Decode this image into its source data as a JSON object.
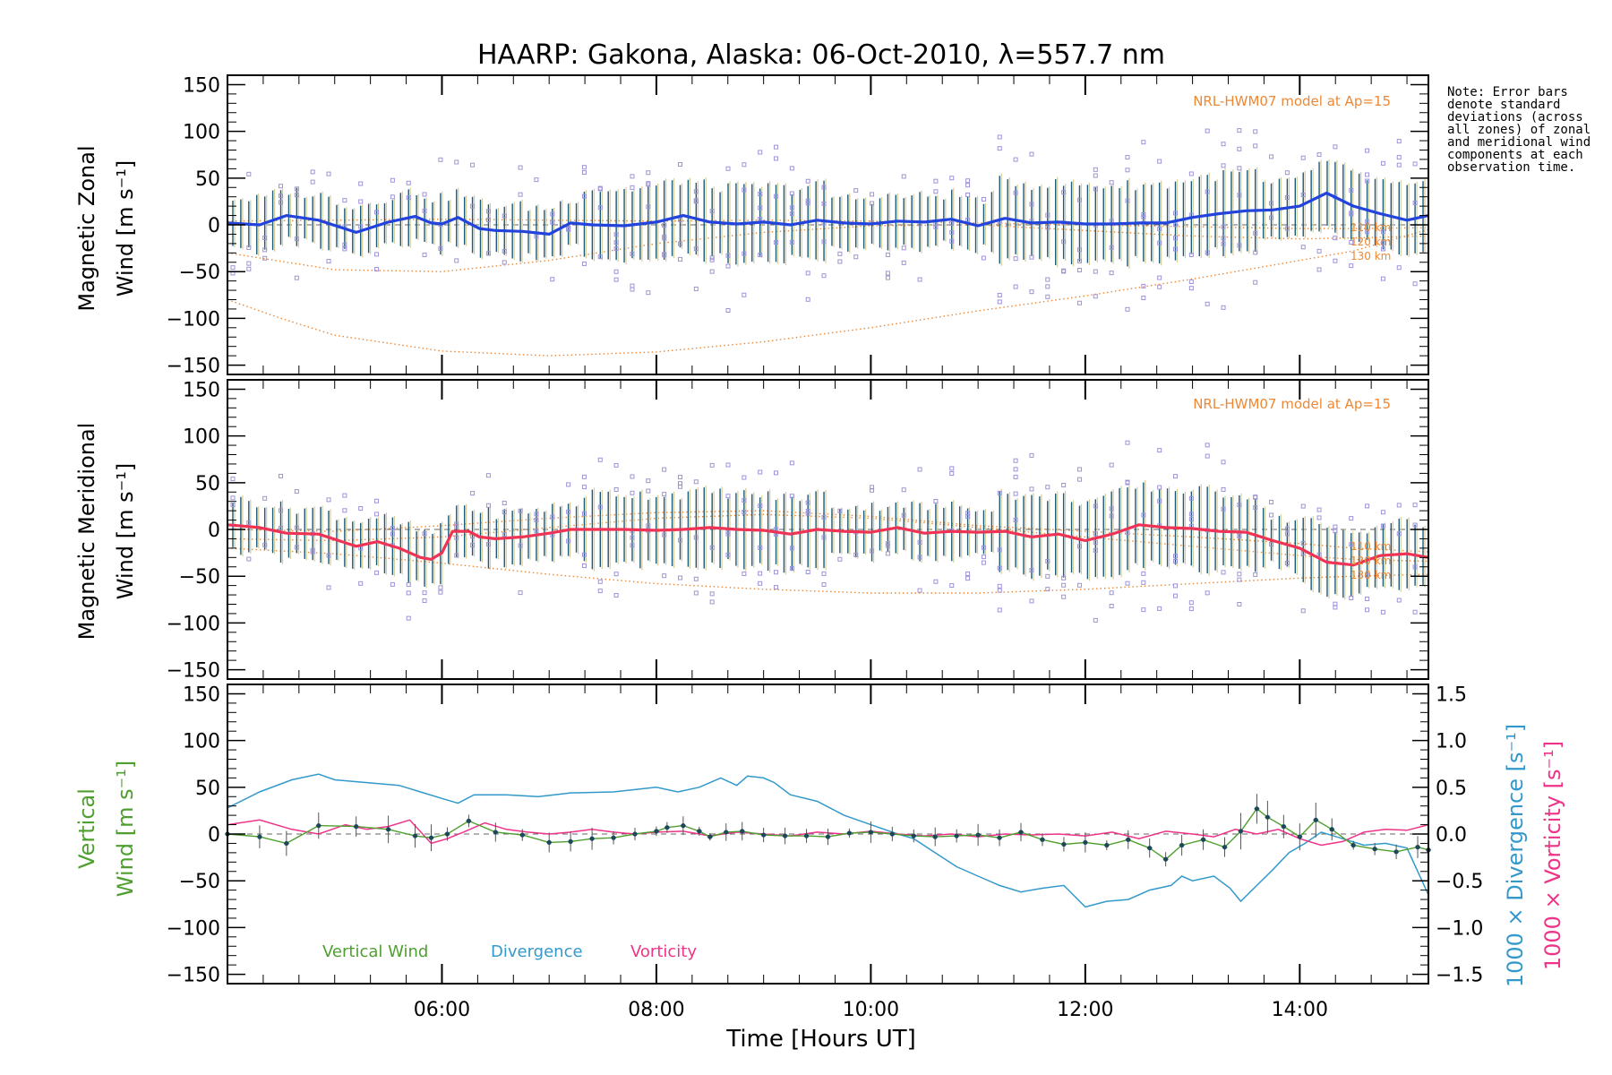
{
  "chart_data": {
    "type": "line",
    "title": "HAARP: Gakona,  Alaska: 06-Oct-2010, λ=557.7 nm",
    "xlabel": "Time [Hours UT]",
    "xlim": [
      4.0,
      15.2
    ],
    "xticks": [
      6,
      8,
      10,
      12,
      14
    ],
    "xtick_labels": [
      "06:00",
      "08:00",
      "10:00",
      "12:00",
      "14:00"
    ],
    "note": "Note: Error bars denote standard deviations (across all zones) of zonal and meridional wind components at each observation time.",
    "colors": {
      "zonal": "#2244dd",
      "meridional": "#ee3355",
      "model": "#ee8833",
      "zones": "#9f93d8",
      "errbar_a": "#1a5a7a",
      "errbar_b": "#d8cc99",
      "vertical": "#4f9f30",
      "divergence": "#3399cc",
      "vorticity": "#ee3388"
    },
    "panels": [
      {
        "id": "zonal",
        "ylabel_line1": "Magnetic Zonal",
        "ylabel_line2": "Wind [m s⁻¹]",
        "ylim": [
          -160,
          160
        ],
        "yticks": [
          -150,
          -100,
          -50,
          0,
          50,
          100,
          150
        ],
        "ytick_labels": [
          "−150",
          "−100",
          "−50",
          "0",
          "50",
          "100",
          "150"
        ],
        "model_label": "NRL-HWM07 model at Ap=15",
        "model_height_labels": [
          "110 km",
          "120 km",
          "130 km"
        ],
        "series": [
          {
            "name": "Magnetic Zonal Wind",
            "x": [
              4.0,
              4.3,
              4.55,
              4.85,
              5.2,
              5.5,
              5.75,
              5.9,
              6.0,
              6.15,
              6.25,
              6.35,
              6.5,
              6.75,
              7.0,
              7.2,
              7.4,
              7.7,
              8.0,
              8.25,
              8.5,
              8.75,
              9.0,
              9.25,
              9.5,
              9.75,
              10.0,
              10.25,
              10.5,
              10.75,
              11.0,
              11.25,
              11.5,
              11.75,
              12.0,
              12.25,
              12.5,
              12.75,
              13.0,
              13.25,
              13.5,
              13.75,
              14.0,
              14.25,
              14.5,
              14.75,
              15.0,
              15.2
            ],
            "y": [
              2,
              0,
              10,
              5,
              -8,
              3,
              9,
              2,
              1,
              8,
              2,
              -4,
              -6,
              -7,
              -10,
              2,
              0,
              -1,
              3,
              10,
              3,
              1,
              3,
              0,
              5,
              2,
              1,
              4,
              3,
              6,
              -1,
              7,
              2,
              3,
              1,
              1,
              2,
              2,
              8,
              12,
              15,
              16,
              20,
              34,
              20,
              12,
              5,
              10
            ]
          },
          {
            "name": "NRL-HWM07 110 km",
            "x": [
              4.0,
              5.0,
              6.0,
              7.0,
              8.0,
              9.0,
              10.0,
              11.0,
              12.0,
              13.0,
              14.0,
              14.5,
              15.2
            ],
            "y": [
              4,
              5,
              6,
              5,
              4,
              5,
              4,
              2,
              0,
              -2,
              -4,
              -4,
              -3
            ]
          },
          {
            "name": "NRL-HWM07 120 km",
            "x": [
              4.0,
              5.0,
              6.0,
              7.0,
              8.0,
              9.0,
              10.0,
              11.0,
              12.0,
              13.0,
              14.0,
              14.5,
              15.2
            ],
            "y": [
              -30,
              -48,
              -50,
              -38,
              -20,
              -8,
              -1,
              0,
              -6,
              -12,
              -15,
              -14,
              -12
            ]
          },
          {
            "name": "NRL-HWM07 130 km",
            "x": [
              4.0,
              4.5,
              5.0,
              6.0,
              7.0,
              8.0,
              9.0,
              10.0,
              11.0,
              12.0,
              13.0,
              14.0,
              14.5,
              15.2
            ],
            "y": [
              -80,
              -100,
              -118,
              -135,
              -140,
              -136,
              -125,
              -110,
              -92,
              -76,
              -58,
              -38,
              -28,
              -5
            ]
          }
        ]
      },
      {
        "id": "meridional",
        "ylabel_line1": "Magnetic Meridional",
        "ylabel_line2": "Wind [m s⁻¹]",
        "ylim": [
          -160,
          160
        ],
        "yticks": [
          -150,
          -100,
          -50,
          0,
          50,
          100,
          150
        ],
        "ytick_labels": [
          "−150",
          "−100",
          "−50",
          "0",
          "50",
          "100",
          "150"
        ],
        "model_label": "NRL-HWM07 model at Ap=15",
        "model_height_labels": [
          "110 km",
          "120 km",
          "130 km"
        ],
        "series": [
          {
            "name": "Magnetic Meridional Wind",
            "x": [
              4.0,
              4.3,
              4.55,
              4.85,
              5.2,
              5.4,
              5.6,
              5.8,
              5.9,
              6.0,
              6.1,
              6.25,
              6.35,
              6.5,
              6.75,
              7.0,
              7.2,
              7.4,
              7.7,
              8.0,
              8.25,
              8.5,
              8.75,
              9.0,
              9.25,
              9.5,
              9.75,
              10.0,
              10.25,
              10.5,
              10.75,
              11.0,
              11.25,
              11.5,
              11.75,
              12.0,
              12.25,
              12.5,
              12.75,
              13.0,
              13.25,
              13.5,
              13.75,
              14.0,
              14.25,
              14.5,
              14.75,
              15.0,
              15.2
            ],
            "y": [
              5,
              2,
              -4,
              -5,
              -18,
              -13,
              -20,
              -30,
              -32,
              -25,
              -2,
              -2,
              -8,
              -10,
              -8,
              -4,
              0,
              0,
              0,
              -1,
              0,
              2,
              0,
              -1,
              -5,
              0,
              -2,
              -3,
              2,
              -4,
              -2,
              -3,
              -2,
              -8,
              -5,
              -12,
              -5,
              5,
              2,
              1,
              -2,
              -3,
              -12,
              -20,
              -35,
              -38,
              -28,
              -26,
              -30
            ]
          },
          {
            "name": "NRL-HWM07 110 km",
            "x": [
              4.0,
              5.0,
              6.0,
              7.0,
              8.0,
              9.0,
              10.0,
              11.0,
              12.0,
              13.0,
              14.0,
              14.5,
              15.2
            ],
            "y": [
              0,
              -2,
              4,
              12,
              18,
              20,
              14,
              4,
              -2,
              -8,
              -15,
              -20,
              -24
            ]
          },
          {
            "name": "NRL-HWM07 120 km",
            "x": [
              4.0,
              5.0,
              6.0,
              7.0,
              8.0,
              9.0,
              10.0,
              11.0,
              12.0,
              13.0,
              14.0,
              14.5,
              15.2
            ],
            "y": [
              -10,
              -12,
              -8,
              2,
              12,
              16,
              12,
              2,
              -8,
              -18,
              -28,
              -32,
              -34
            ]
          },
          {
            "name": "NRL-HWM07 130 km",
            "x": [
              4.0,
              5.0,
              6.0,
              7.0,
              8.0,
              9.0,
              10.0,
              11.0,
              12.0,
              13.0,
              14.0,
              14.5,
              15.2
            ],
            "y": [
              -20,
              -26,
              -36,
              -48,
              -58,
              -64,
              -68,
              -68,
              -64,
              -58,
              -52,
              -50,
              -48
            ]
          }
        ]
      },
      {
        "id": "vertical",
        "ylabel_line1": "Vertical",
        "ylabel_line2": "Wind [m s⁻¹]",
        "ylim": [
          -160,
          160
        ],
        "yticks": [
          -150,
          -100,
          -50,
          0,
          50,
          100,
          150
        ],
        "ytick_labels": [
          "−150",
          "−100",
          "−50",
          "0",
          "50",
          "100",
          "150"
        ],
        "y2lim": [
          -1.6,
          1.6
        ],
        "y2ticks": [
          -1.5,
          -1.0,
          -0.5,
          0.0,
          0.5,
          1.0,
          1.5
        ],
        "y2tick_labels": [
          "−1.5",
          "−1.0",
          "−0.5",
          "0.0",
          "0.5",
          "1.0",
          "1.5"
        ],
        "y2label_divergence": "1000 × Divergence [s⁻¹]",
        "y2label_vorticity": "1000 × Vorticity [s⁻¹]",
        "legend": [
          "Vertical Wind",
          "Divergence",
          "Vorticity"
        ],
        "series": [
          {
            "name": "Vertical Wind",
            "x": [
              4.0,
              4.3,
              4.55,
              4.85,
              5.2,
              5.5,
              5.75,
              5.9,
              6.05,
              6.25,
              6.5,
              6.75,
              7.0,
              7.2,
              7.4,
              7.6,
              7.8,
              8.0,
              8.1,
              8.25,
              8.4,
              8.5,
              8.65,
              8.8,
              9.0,
              9.2,
              9.4,
              9.6,
              9.8,
              10.0,
              10.2,
              10.4,
              10.6,
              10.8,
              11.0,
              11.2,
              11.4,
              11.6,
              11.8,
              12.0,
              12.2,
              12.4,
              12.6,
              12.75,
              12.9,
              13.1,
              13.3,
              13.45,
              13.6,
              13.7,
              13.85,
              14.0,
              14.15,
              14.3,
              14.5,
              14.7,
              14.9,
              15.1,
              15.2
            ],
            "y": [
              0,
              -3,
              -10,
              9,
              8,
              5,
              -2,
              -4,
              0,
              14,
              2,
              -1,
              -9,
              -8,
              -5,
              -4,
              0,
              3,
              7,
              9,
              3,
              -3,
              2,
              3,
              -1,
              -2,
              -2,
              -3,
              1,
              2,
              0,
              -2,
              -3,
              -2,
              -1,
              -4,
              2,
              -6,
              -11,
              -9,
              -12,
              -6,
              -15,
              -27,
              -12,
              -6,
              -14,
              3,
              27,
              18,
              8,
              -3,
              15,
              5,
              -12,
              -16,
              -19,
              -14,
              -17
            ]
          },
          {
            "name": "Divergence",
            "x": [
              4.0,
              4.3,
              4.6,
              4.85,
              5.0,
              5.3,
              5.6,
              5.8,
              6.0,
              6.15,
              6.3,
              6.6,
              6.9,
              7.2,
              7.6,
              8.0,
              8.2,
              8.4,
              8.6,
              8.75,
              8.85,
              9.0,
              9.1,
              9.25,
              9.5,
              9.75,
              10.0,
              10.25,
              10.4,
              10.6,
              10.8,
              11.0,
              11.2,
              11.4,
              11.6,
              11.8,
              12.0,
              12.2,
              12.4,
              12.6,
              12.8,
              12.9,
              13.0,
              13.2,
              13.35,
              13.45,
              13.6,
              13.75,
              13.9,
              14.05,
              14.2,
              14.4,
              14.6,
              14.8,
              15.0,
              15.2
            ],
            "y": [
              0.28,
              0.45,
              0.58,
              0.64,
              0.58,
              0.55,
              0.52,
              0.45,
              0.38,
              0.33,
              0.42,
              0.42,
              0.4,
              0.44,
              0.45,
              0.5,
              0.45,
              0.5,
              0.6,
              0.52,
              0.62,
              0.6,
              0.55,
              0.42,
              0.35,
              0.2,
              0.1,
              0.0,
              -0.05,
              -0.2,
              -0.35,
              -0.45,
              -0.55,
              -0.62,
              -0.58,
              -0.55,
              -0.78,
              -0.72,
              -0.7,
              -0.6,
              -0.55,
              -0.45,
              -0.5,
              -0.45,
              -0.58,
              -0.72,
              -0.55,
              -0.38,
              -0.2,
              -0.1,
              0.02,
              -0.05,
              -0.12,
              -0.1,
              -0.15,
              -0.65
            ]
          },
          {
            "name": "Vorticity",
            "x": [
              4.0,
              4.3,
              4.6,
              4.85,
              5.1,
              5.3,
              5.5,
              5.7,
              5.9,
              6.05,
              6.2,
              6.4,
              6.6,
              6.8,
              7.0,
              7.2,
              7.4,
              7.6,
              7.8,
              8.0,
              8.25,
              8.5,
              8.75,
              9.0,
              9.25,
              9.5,
              9.75,
              10.0,
              10.25,
              10.5,
              10.75,
              11.0,
              11.25,
              11.5,
              11.75,
              12.0,
              12.25,
              12.5,
              12.75,
              13.0,
              13.2,
              13.4,
              13.6,
              13.8,
              14.0,
              14.2,
              14.4,
              14.6,
              14.8,
              15.0,
              15.2
            ],
            "y": [
              0.1,
              0.15,
              0.05,
              0.0,
              0.1,
              0.05,
              0.08,
              0.15,
              -0.1,
              -0.05,
              0.02,
              0.12,
              0.05,
              0.02,
              0.0,
              0.02,
              0.05,
              0.02,
              0.0,
              0.02,
              0.03,
              -0.02,
              0.02,
              0.0,
              -0.02,
              0.02,
              0.0,
              0.03,
              0.0,
              -0.02,
              0.0,
              -0.03,
              0.0,
              -0.01,
              0.0,
              -0.02,
              0.02,
              -0.05,
              0.03,
              0.0,
              -0.03,
              0.05,
              0.0,
              0.05,
              -0.05,
              -0.12,
              -0.08,
              0.02,
              0.05,
              0.04,
              0.1
            ]
          }
        ]
      }
    ]
  }
}
